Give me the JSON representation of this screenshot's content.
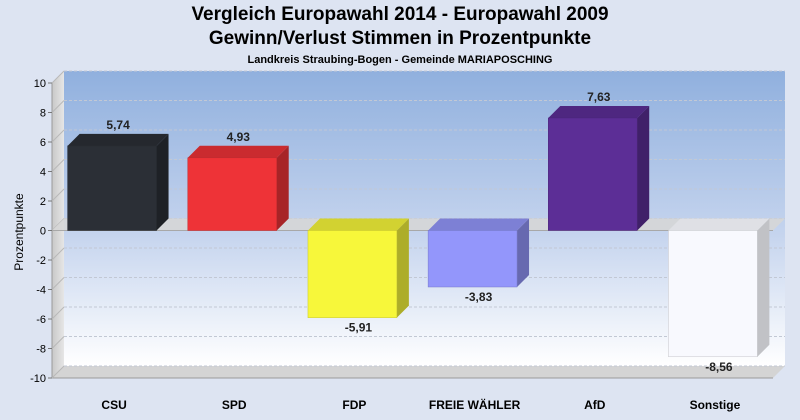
{
  "chart_data": {
    "type": "bar",
    "title": "Vergleich Europawahl 2014 - Europawahl 2009",
    "title_line2": "Gewinn/Verlust Stimmen in Prozentpunkte",
    "subtitle": "Landkreis Straubing-Bogen - Gemeinde MARIAPOSCHING",
    "ylabel": "Prozentpunkte",
    "categories": [
      "CSU",
      "SPD",
      "FDP",
      "FREIE WÄHLER",
      "AfD",
      "Sonstige"
    ],
    "values": [
      5.74,
      4.93,
      -5.91,
      -3.83,
      7.63,
      -8.56
    ],
    "value_labels": [
      "5,74",
      "4,93",
      "-5,91",
      "-3,83",
      "7,63",
      "-8,56"
    ],
    "colors": [
      "#2b2f36",
      "#ee3337",
      "#f7f73a",
      "#9396fb",
      "#5c2e96",
      "#f8f9fe"
    ],
    "ylim": [
      -10,
      10
    ],
    "yticks": [
      10,
      8,
      6,
      4,
      2,
      0,
      -2,
      -4,
      -6,
      -8,
      -10
    ],
    "grid": true,
    "style": "3d"
  }
}
